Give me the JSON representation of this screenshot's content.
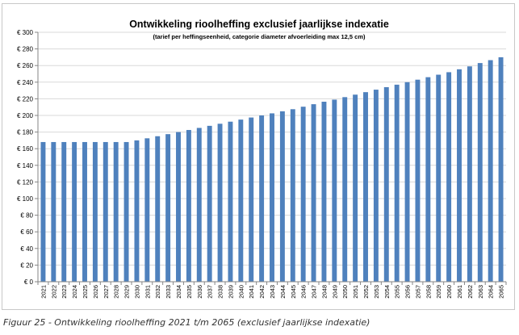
{
  "chart_data": {
    "type": "bar",
    "title": "Ontwikkeling rioolheffing exclusief jaarlijkse indexatie",
    "subtitle": "(tarief per heffingseenheid, categorie diameter afvoerleiding max 12,5 cm)",
    "xlabel": "",
    "ylabel": "",
    "ylim": [
      0,
      300
    ],
    "y_ticks": [
      0,
      20,
      40,
      60,
      80,
      100,
      120,
      140,
      160,
      180,
      200,
      220,
      240,
      260,
      280,
      300
    ],
    "y_tick_prefix": "€ ",
    "grid": true,
    "legend": "none",
    "bar_color": "#4f81bd",
    "categories": [
      "2021",
      "2022",
      "2023",
      "2024",
      "2025",
      "2026",
      "2027",
      "2028",
      "2029",
      "2030",
      "2031",
      "2032",
      "2033",
      "2034",
      "2035",
      "2036",
      "2037",
      "2038",
      "2039",
      "2040",
      "2041",
      "2042",
      "2043",
      "2044",
      "2045",
      "2046",
      "2047",
      "2048",
      "2049",
      "2050",
      "2051",
      "2052",
      "2053",
      "2054",
      "2055",
      "2056",
      "2057",
      "2058",
      "2059",
      "2060",
      "2061",
      "2062",
      "2063",
      "2064",
      "2065"
    ],
    "values": [
      168,
      168,
      168,
      168,
      168,
      168,
      168,
      168,
      168,
      170,
      172.5,
      175,
      177.5,
      180,
      182.5,
      185,
      187.5,
      190,
      192.5,
      195,
      197.5,
      200,
      202.5,
      205,
      207.5,
      210.5,
      213.5,
      216.5,
      219,
      222,
      225,
      228,
      231,
      234,
      237,
      240,
      243,
      246,
      249,
      252,
      255.5,
      259,
      263,
      266.5,
      270
    ]
  },
  "caption": "Figuur 25 - Ontwikkeling rioolheffing 2021 t/m 2065 (exclusief jaarlijkse indexatie)"
}
